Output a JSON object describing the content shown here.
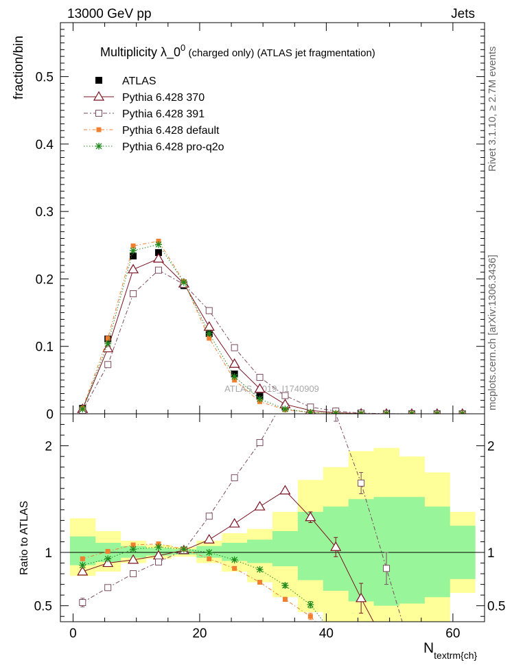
{
  "header": {
    "left": "13000 GeV pp",
    "right": "Jets",
    "side_top": "Rivet 3.1.10, ≥ 2.7M events",
    "side_bottom": "mcplots.cern.ch [arXiv:1306.3436]",
    "watermark": "ATLAS_2019_I1740909"
  },
  "colors": {
    "atlas": "#000000",
    "p370": "#7a0f1f",
    "p391": "#7a4a5e",
    "pdefault": "#f07f30",
    "pq2o": "#1e8a1e",
    "band_inner": "#99f599",
    "band_outer": "#ffff99"
  },
  "chart_data": [
    {
      "type": "line",
      "title": "Multiplicity  λ_0",
      "title_sup": "0",
      "title_suffix": " (charged only) (ATLAS jet fragmentation)",
      "ylabel": "fraction/bin",
      "xlim": [
        -2,
        65
      ],
      "ylim": [
        0,
        0.58
      ],
      "yticks": [
        0,
        0.1,
        0.2,
        0.3,
        0.4,
        0.5
      ],
      "ytick_labels": [
        "0",
        "0.1",
        "0.2",
        "0.3",
        "0.4",
        "0.5"
      ],
      "legend_position": "top-left",
      "x": [
        1.5,
        5.5,
        9.5,
        13.5,
        17.5,
        21.5,
        25.5,
        29.5,
        33.5,
        37.5,
        41.5,
        45.5,
        49.5,
        53.5,
        57.5,
        61.5
      ],
      "series": [
        {
          "name": "ATLAS",
          "key": "atlas",
          "values": [
            0.008,
            0.111,
            0.234,
            0.239,
            0.19,
            0.119,
            0.059,
            0.026,
            0.01,
            0.004,
            0.0015,
            0.0005,
            0.0002,
            0.0001,
            5e-05,
            2e-05
          ]
        },
        {
          "name": "Pythia 6.428 370",
          "key": "p370",
          "values": [
            0.007,
            0.097,
            0.214,
            0.23,
            0.193,
            0.129,
            0.074,
            0.037,
            0.014,
            0.005,
            0.0015,
            0.0003,
            5e-05,
            0,
            0,
            0
          ]
        },
        {
          "name": "Pythia 6.428 391",
          "key": "p391",
          "values": [
            0.005,
            0.073,
            0.178,
            0.213,
            0.192,
            0.153,
            0.098,
            0.054,
            0.027,
            0.01,
            0.004,
            0.001,
            0.0002,
            0,
            0,
            0
          ]
        },
        {
          "name": "Pythia 6.428 default",
          "key": "pdefault",
          "values": [
            0.008,
            0.112,
            0.249,
            0.256,
            0.196,
            0.112,
            0.05,
            0.018,
            0.006,
            0.002,
            0.0005,
            0.0001,
            0,
            0,
            0,
            0
          ]
        },
        {
          "name": "Pythia 6.428 pro-q2o",
          "key": "pq2o",
          "values": [
            0.007,
            0.104,
            0.242,
            0.251,
            0.195,
            0.119,
            0.055,
            0.022,
            0.007,
            0.002,
            0.0006,
            0.0001,
            0,
            0,
            0,
            0
          ]
        }
      ]
    },
    {
      "type": "line",
      "ylabel": "Ratio to ATLAS",
      "xlabel": "N",
      "xlabel_sub": "textrm{ch}",
      "xlim": [
        -2,
        65
      ],
      "ylim": [
        0.35,
        2.3
      ],
      "xticks": [
        0,
        20,
        40,
        60
      ],
      "xtick_labels": [
        "0",
        "20",
        "40",
        "60"
      ],
      "yticks": [
        0.5,
        1,
        2
      ],
      "ytick_labels": [
        "0.5",
        "1",
        "2"
      ],
      "reference_line": 1,
      "band_edges": [
        -0.5,
        3.5,
        7.5,
        11.5,
        15.5,
        19.5,
        23.5,
        27.5,
        31.5,
        35.5,
        39.5,
        43.5,
        47.5,
        51.5,
        55.5,
        59.5,
        63.5
      ],
      "band_inner": [
        [
          0.88,
          1.15
        ],
        [
          0.91,
          1.09
        ],
        [
          0.95,
          1.06
        ],
        [
          0.97,
          1.04
        ],
        [
          0.98,
          1.03
        ],
        [
          0.95,
          1.06
        ],
        [
          0.92,
          1.09
        ],
        [
          0.9,
          1.12
        ],
        [
          0.87,
          1.2
        ],
        [
          0.74,
          1.38
        ],
        [
          0.64,
          1.43
        ],
        [
          0.54,
          1.5
        ],
        [
          0.5,
          1.52
        ],
        [
          0.52,
          1.52
        ],
        [
          0.58,
          1.43
        ],
        [
          0.75,
          1.25
        ]
      ],
      "band_outer": [
        [
          0.78,
          1.32
        ],
        [
          0.82,
          1.2
        ],
        [
          0.9,
          1.11
        ],
        [
          0.94,
          1.07
        ],
        [
          0.96,
          1.05
        ],
        [
          0.9,
          1.11
        ],
        [
          0.82,
          1.18
        ],
        [
          0.72,
          1.22
        ],
        [
          0.58,
          1.38
        ],
        [
          0.44,
          1.68
        ],
        [
          0.33,
          1.8
        ],
        [
          0.22,
          1.95
        ],
        [
          0.18,
          1.98
        ],
        [
          0.22,
          1.9
        ],
        [
          0.3,
          1.75
        ],
        [
          0.62,
          1.38
        ]
      ],
      "series": [
        {
          "name": "Pythia 6.428 370",
          "key": "p370",
          "x": [
            1.5,
            5.5,
            9.5,
            13.5,
            17.5,
            21.5,
            25.5,
            29.5,
            33.5,
            37.5,
            41.5,
            45.5,
            49.5
          ],
          "values": [
            0.82,
            0.9,
            0.93,
            0.97,
            1.02,
            1.12,
            1.27,
            1.43,
            1.58,
            1.33,
            1.05,
            0.57,
            0.12
          ],
          "errors": [
            0.02,
            0.01,
            0.01,
            0.01,
            0.01,
            0.01,
            0.01,
            0.02,
            0.02,
            0.05,
            0.09,
            0.14,
            0.2
          ]
        },
        {
          "name": "Pythia 6.428 391",
          "key": "p391",
          "x": [
            1.5,
            5.5,
            9.5,
            13.5,
            17.5,
            21.5,
            25.5,
            29.5,
            33.5,
            37.5,
            41.5,
            45.5,
            49.5,
            53.5
          ],
          "values": [
            0.53,
            0.67,
            0.8,
            0.91,
            1.02,
            1.34,
            1.7,
            2.03,
            2.45,
            2.55,
            2.3,
            1.65,
            0.85,
            0.05
          ],
          "errors": [
            0.04,
            0.01,
            0.01,
            0.01,
            0.01,
            0.01,
            0.01,
            0.02,
            0.03,
            0.05,
            0.07,
            0.1,
            0.15,
            0.2
          ]
        },
        {
          "name": "Pythia 6.428 default",
          "key": "pdefault",
          "x": [
            1.5,
            5.5,
            9.5,
            13.5,
            17.5,
            21.5,
            25.5,
            29.5,
            33.5,
            37.5,
            41.5
          ],
          "values": [
            0.94,
            1.01,
            1.07,
            1.08,
            1.03,
            0.94,
            0.85,
            0.72,
            0.56,
            0.4,
            0.15
          ],
          "errors": [
            0.01,
            0.01,
            0.01,
            0.01,
            0.01,
            0.01,
            0.01,
            0.01,
            0.02,
            0.03,
            0.05
          ]
        },
        {
          "name": "Pythia 6.428 pro-q2o",
          "key": "pq2o",
          "x": [
            1.5,
            5.5,
            9.5,
            13.5,
            17.5,
            21.5,
            25.5,
            29.5,
            33.5,
            37.5,
            41.5
          ],
          "values": [
            0.88,
            0.94,
            1.03,
            1.05,
            1.03,
            1.0,
            0.93,
            0.84,
            0.69,
            0.51,
            0.2
          ],
          "errors": [
            0.01,
            0.01,
            0.01,
            0.01,
            0.01,
            0.01,
            0.01,
            0.01,
            0.02,
            0.03,
            0.05
          ]
        }
      ]
    }
  ]
}
